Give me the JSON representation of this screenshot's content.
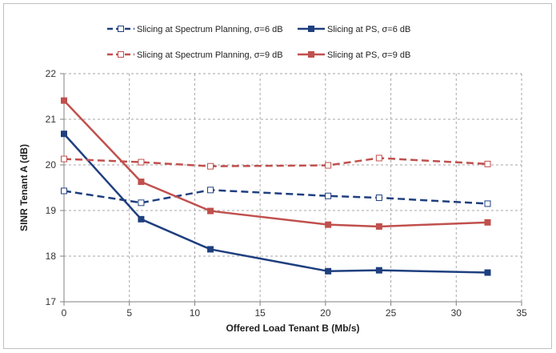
{
  "chart_data": {
    "type": "line",
    "title": "",
    "xlabel": "Offered Load Tenant B (Mb/s)",
    "ylabel": "SINR Tenant A (dB)",
    "xlim": [
      0,
      35
    ],
    "ylim": [
      17,
      22
    ],
    "xticks": [
      0,
      5,
      10,
      15,
      20,
      25,
      30,
      35
    ],
    "yticks": [
      17,
      18,
      19,
      20,
      21,
      22
    ],
    "grid": "dashed",
    "legend_position": "top",
    "series": [
      {
        "name": "Slicing at Spectrum Planning, σ=6 dB",
        "color": "#1f3f7f",
        "dash": true,
        "marker": "hollow-square",
        "x": [
          0,
          5.9,
          11.2,
          20.2,
          24.1,
          32.4
        ],
        "y": [
          19.43,
          19.17,
          19.45,
          19.32,
          19.28,
          19.15
        ]
      },
      {
        "name": "Slicing at PS, σ=6 dB",
        "color": "#1f3f7f",
        "dash": false,
        "marker": "filled-square",
        "x": [
          0,
          5.9,
          11.2,
          20.2,
          24.1,
          32.4
        ],
        "y": [
          20.68,
          18.81,
          18.15,
          17.67,
          17.69,
          17.64
        ]
      },
      {
        "name": "Slicing at Spectrum Planning, σ=9 dB",
        "color": "#c0504d",
        "dash": true,
        "marker": "hollow-square",
        "x": [
          0,
          5.9,
          11.2,
          20.2,
          24.1,
          32.4
        ],
        "y": [
          20.13,
          20.06,
          19.97,
          19.99,
          20.15,
          20.02
        ]
      },
      {
        "name": "Slicing at PS, σ=9 dB",
        "color": "#c0504d",
        "dash": false,
        "marker": "filled-square",
        "x": [
          0,
          5.9,
          11.2,
          20.2,
          24.1,
          32.4
        ],
        "y": [
          21.41,
          19.63,
          18.99,
          18.69,
          18.65,
          18.74
        ]
      }
    ]
  }
}
